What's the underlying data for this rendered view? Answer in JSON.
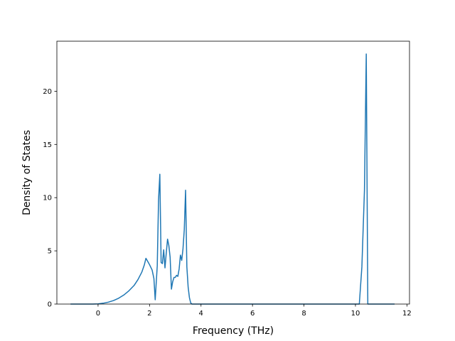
{
  "chart_data": {
    "type": "line",
    "title": "",
    "xlabel": "Frequency (THz)",
    "ylabel": "Density of States",
    "xlim": [
      -1.6,
      12.1
    ],
    "ylim": [
      0,
      24.7
    ],
    "xticks": [
      0,
      2,
      4,
      6,
      8,
      10,
      12
    ],
    "yticks": [
      0,
      5,
      10,
      15,
      20
    ],
    "grid": false,
    "colors": {
      "line": "#1f77b4",
      "axes": "#000000"
    },
    "series": [
      {
        "name": "",
        "x": [
          -1.05,
          -0.6,
          -0.2,
          0.0,
          0.2,
          0.4,
          0.6,
          0.8,
          1.0,
          1.2,
          1.4,
          1.55,
          1.7,
          1.8,
          1.86,
          1.92,
          2.0,
          2.1,
          2.17,
          2.22,
          2.3,
          2.35,
          2.4,
          2.45,
          2.5,
          2.55,
          2.6,
          2.65,
          2.7,
          2.75,
          2.8,
          2.85,
          2.9,
          2.95,
          3.0,
          3.05,
          3.1,
          3.15,
          3.2,
          3.25,
          3.3,
          3.35,
          3.4,
          3.45,
          3.5,
          3.55,
          3.6,
          3.65,
          3.7,
          3.75,
          3.8,
          4.5,
          6.0,
          8.0,
          9.5,
          10.0,
          10.15,
          10.25,
          10.35,
          10.42,
          10.48,
          10.55,
          11.0,
          11.5
        ],
        "y": [
          0,
          0,
          0,
          0.02,
          0.08,
          0.18,
          0.33,
          0.55,
          0.85,
          1.25,
          1.75,
          2.3,
          3.0,
          3.7,
          4.3,
          4.05,
          3.7,
          3.2,
          2.4,
          0.4,
          3.6,
          9.8,
          12.2,
          3.9,
          3.8,
          5.1,
          3.4,
          4.8,
          6.1,
          5.5,
          4.4,
          1.4,
          2.1,
          2.5,
          2.5,
          2.7,
          2.6,
          3.3,
          4.6,
          4.1,
          5.2,
          7.0,
          10.7,
          3.5,
          1.6,
          0.6,
          0.1,
          0,
          0,
          0,
          0,
          0,
          0,
          0,
          0,
          0,
          0,
          3.5,
          10.7,
          23.5,
          0,
          0,
          0,
          0
        ]
      }
    ]
  }
}
